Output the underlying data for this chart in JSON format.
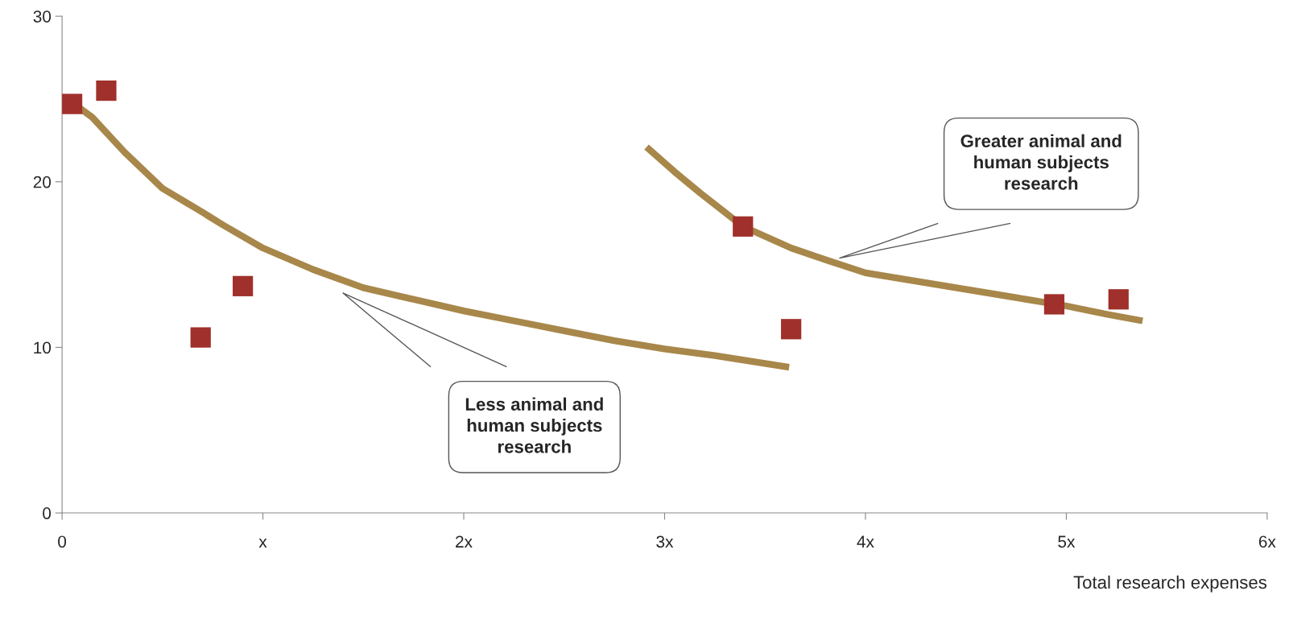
{
  "chart_data": {
    "type": "scatter",
    "xlabel": "Total research expenses",
    "xlim": [
      0,
      6
    ],
    "ylim": [
      0,
      30
    ],
    "xticks": [
      0,
      {
        "value": 1,
        "label": "x"
      },
      {
        "value": 2,
        "label": "2x"
      },
      {
        "value": 3,
        "label": "3x"
      },
      {
        "value": 4,
        "label": "4x"
      },
      {
        "value": 5,
        "label": "5x"
      },
      {
        "value": 6,
        "label": "6x"
      }
    ],
    "yticks": [
      0,
      10,
      20,
      30
    ],
    "grid": false,
    "legend": false,
    "series": [
      {
        "marker": "square",
        "color": "#a0302b",
        "x": [
          0.05,
          0.22,
          0.69,
          0.9,
          3.39,
          3.63,
          4.94,
          5.26
        ],
        "values": [
          24.7,
          25.5,
          10.6,
          13.7,
          17.3,
          11.1,
          12.6,
          12.9
        ]
      },
      {
        "type": "line",
        "color": "#a8874a",
        "line_style": "solid",
        "x": [
          0.06,
          0.15,
          0.31,
          0.5,
          0.68,
          0.8,
          1.0,
          1.25,
          1.5,
          1.75,
          2.0,
          2.25,
          2.5,
          2.75,
          3.0,
          3.25,
          3.62
        ],
        "values": [
          24.7,
          23.9,
          21.8,
          19.6,
          18.3,
          17.4,
          16.0,
          14.7,
          13.6,
          12.9,
          12.2,
          11.6,
          11.0,
          10.4,
          9.9,
          9.5,
          8.8
        ]
      },
      {
        "type": "line",
        "color": "#a8874a",
        "line_style": "solid",
        "x": [
          2.91,
          3.05,
          3.18,
          3.39,
          3.63,
          3.8,
          4.0,
          4.25,
          4.5,
          4.75,
          5.0,
          5.2,
          5.38
        ],
        "values": [
          22.1,
          20.6,
          19.3,
          17.3,
          16.0,
          15.3,
          14.5,
          14.0,
          13.5,
          13.0,
          12.5,
          12.0,
          11.6
        ]
      }
    ],
    "annotations": [
      "Less animal and\nhuman subjects\nresearch",
      "Greater animal and\nhuman subjects\nresearch"
    ]
  }
}
